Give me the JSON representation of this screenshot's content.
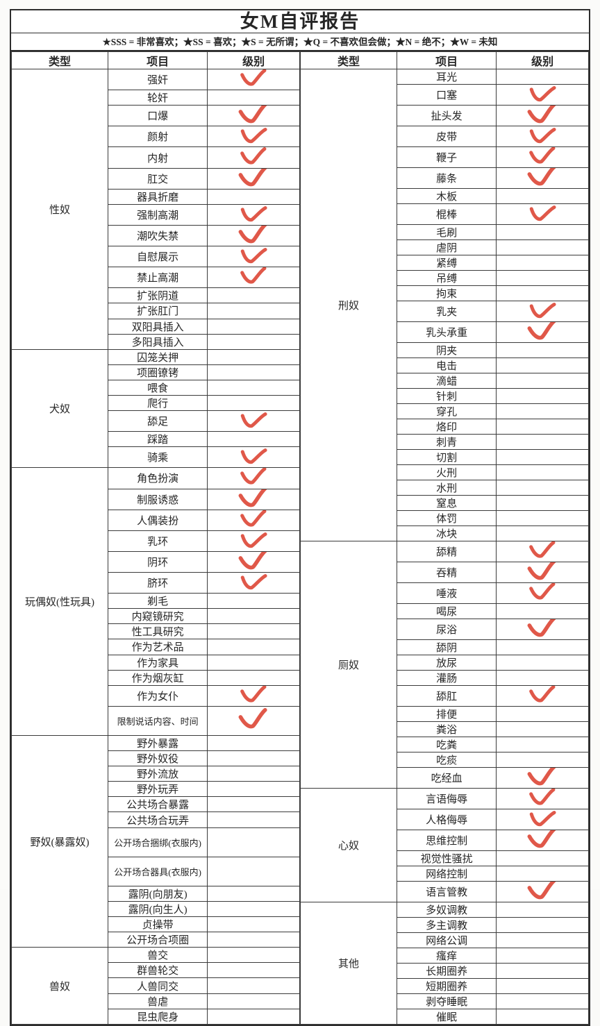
{
  "title": "女M自评报告",
  "legend": "★SSS = 非常喜欢；★SS = 喜欢；★S = 无所谓；★Q = 不喜欢但会做；★N = 绝不；★W = 未知",
  "headers": {
    "type": "类型",
    "item": "项目",
    "level": "级别"
  },
  "check_color": "#dd4a3a",
  "check_icon": "red-hand-drawn-check",
  "left_sections": [
    {
      "type": "性奴",
      "items": [
        {
          "t": "强奸",
          "c": true
        },
        {
          "t": "轮奸"
        },
        {
          "t": "口爆",
          "c": true
        },
        {
          "t": "颜射",
          "c": true
        },
        {
          "t": "内射",
          "c": true
        },
        {
          "t": "肛交",
          "c": true
        },
        {
          "t": "器具折磨"
        },
        {
          "t": "强制高潮",
          "c": true
        },
        {
          "t": "潮吹失禁",
          "c": true
        },
        {
          "t": "自慰展示",
          "c": true
        },
        {
          "t": "禁止高潮",
          "c": true
        },
        {
          "t": "扩张阴道"
        },
        {
          "t": "扩张肛门"
        },
        {
          "t": "双阳具插入"
        },
        {
          "t": "多阳具插入"
        }
      ]
    },
    {
      "type": "犬奴",
      "items": [
        {
          "t": "囚笼关押"
        },
        {
          "t": "项圈镣铐"
        },
        {
          "t": "喂食"
        },
        {
          "t": "爬行"
        },
        {
          "t": "舔足",
          "c": true
        },
        {
          "t": "踩踏"
        },
        {
          "t": "骑乘",
          "c": true
        }
      ]
    },
    {
      "type": "玩偶奴(性玩具)",
      "items": [
        {
          "t": "角色扮演",
          "c": true
        },
        {
          "t": "制服诱惑",
          "c": true
        },
        {
          "t": "人偶装扮",
          "c": true
        },
        {
          "t": "乳环",
          "c": true
        },
        {
          "t": "阴环",
          "c": true
        },
        {
          "t": "脐环",
          "c": true
        },
        {
          "t": "剃毛"
        },
        {
          "t": "内窥镜研究"
        },
        {
          "t": "性工具研究"
        },
        {
          "t": "作为艺术品"
        },
        {
          "t": "作为家具"
        },
        {
          "t": "作为烟灰缸"
        },
        {
          "t": "作为女仆",
          "c": true
        },
        {
          "t": "限制说话内容、时间",
          "c": true,
          "tall": true
        }
      ]
    },
    {
      "type": "野奴(暴露奴)",
      "items": [
        {
          "t": "野外暴露"
        },
        {
          "t": "野外奴役"
        },
        {
          "t": "野外流放"
        },
        {
          "t": "野外玩弄"
        },
        {
          "t": "公共场合暴露"
        },
        {
          "t": "公共场合玩弄"
        },
        {
          "t": "公开场合捆绑(衣服内)",
          "tall": true
        },
        {
          "t": "公开场合器具(衣服内)",
          "tall": true
        },
        {
          "t": "露阴(向朋友)"
        },
        {
          "t": "露阴(向生人)"
        },
        {
          "t": "贞操带"
        },
        {
          "t": "公开场合项圈"
        }
      ]
    },
    {
      "type": "兽奴",
      "items": [
        {
          "t": "兽交"
        },
        {
          "t": "群兽轮交"
        },
        {
          "t": "人兽同交"
        },
        {
          "t": "兽虐"
        },
        {
          "t": "昆虫爬身"
        }
      ]
    }
  ],
  "right_sections": [
    {
      "type": "刑奴",
      "items": [
        {
          "t": "耳光"
        },
        {
          "t": "口塞",
          "c": true
        },
        {
          "t": "扯头发",
          "c": true
        },
        {
          "t": "皮带",
          "c": true
        },
        {
          "t": "鞭子",
          "c": true
        },
        {
          "t": "藤条",
          "c": true
        },
        {
          "t": "木板"
        },
        {
          "t": "棍棒",
          "c": true
        },
        {
          "t": "毛刷"
        },
        {
          "t": "虐阴"
        },
        {
          "t": "紧缚"
        },
        {
          "t": "吊缚"
        },
        {
          "t": "拘束"
        },
        {
          "t": "乳夹",
          "c": true
        },
        {
          "t": "乳头承重",
          "c": true
        },
        {
          "t": "阴夹"
        },
        {
          "t": "电击"
        },
        {
          "t": "滴蜡"
        },
        {
          "t": "针刺"
        },
        {
          "t": "穿孔"
        },
        {
          "t": "烙印"
        },
        {
          "t": "刺青"
        },
        {
          "t": "切割"
        },
        {
          "t": "火刑"
        },
        {
          "t": "水刑"
        },
        {
          "t": "窒息"
        },
        {
          "t": "体罚"
        },
        {
          "t": "冰块"
        }
      ]
    },
    {
      "type": "厕奴",
      "items": [
        {
          "t": "舔精",
          "c": true
        },
        {
          "t": "吞精",
          "c": true
        },
        {
          "t": "唾液",
          "c": true
        },
        {
          "t": "喝尿"
        },
        {
          "t": "尿浴",
          "c": true
        },
        {
          "t": "舔阴"
        },
        {
          "t": "放尿"
        },
        {
          "t": "灌肠"
        },
        {
          "t": "舔肛",
          "c": true
        },
        {
          "t": "排便"
        },
        {
          "t": "粪浴"
        },
        {
          "t": "吃粪"
        },
        {
          "t": "吃痰"
        },
        {
          "t": "吃经血",
          "c": true
        }
      ]
    },
    {
      "type": "心奴",
      "items": [
        {
          "t": "言语侮辱",
          "c": true
        },
        {
          "t": "人格侮辱",
          "c": true
        },
        {
          "t": "思维控制",
          "c": true
        },
        {
          "t": "视觉性骚扰"
        },
        {
          "t": "网络控制"
        },
        {
          "t": "语言管教",
          "c": true
        }
      ]
    },
    {
      "type": "其他",
      "items": [
        {
          "t": "多奴调教"
        },
        {
          "t": "多主调教"
        },
        {
          "t": "网络公调"
        },
        {
          "t": "瘙痒"
        },
        {
          "t": "长期圈养"
        },
        {
          "t": "短期圈养"
        },
        {
          "t": "剥夺睡眠"
        },
        {
          "t": "催眠"
        }
      ]
    }
  ]
}
